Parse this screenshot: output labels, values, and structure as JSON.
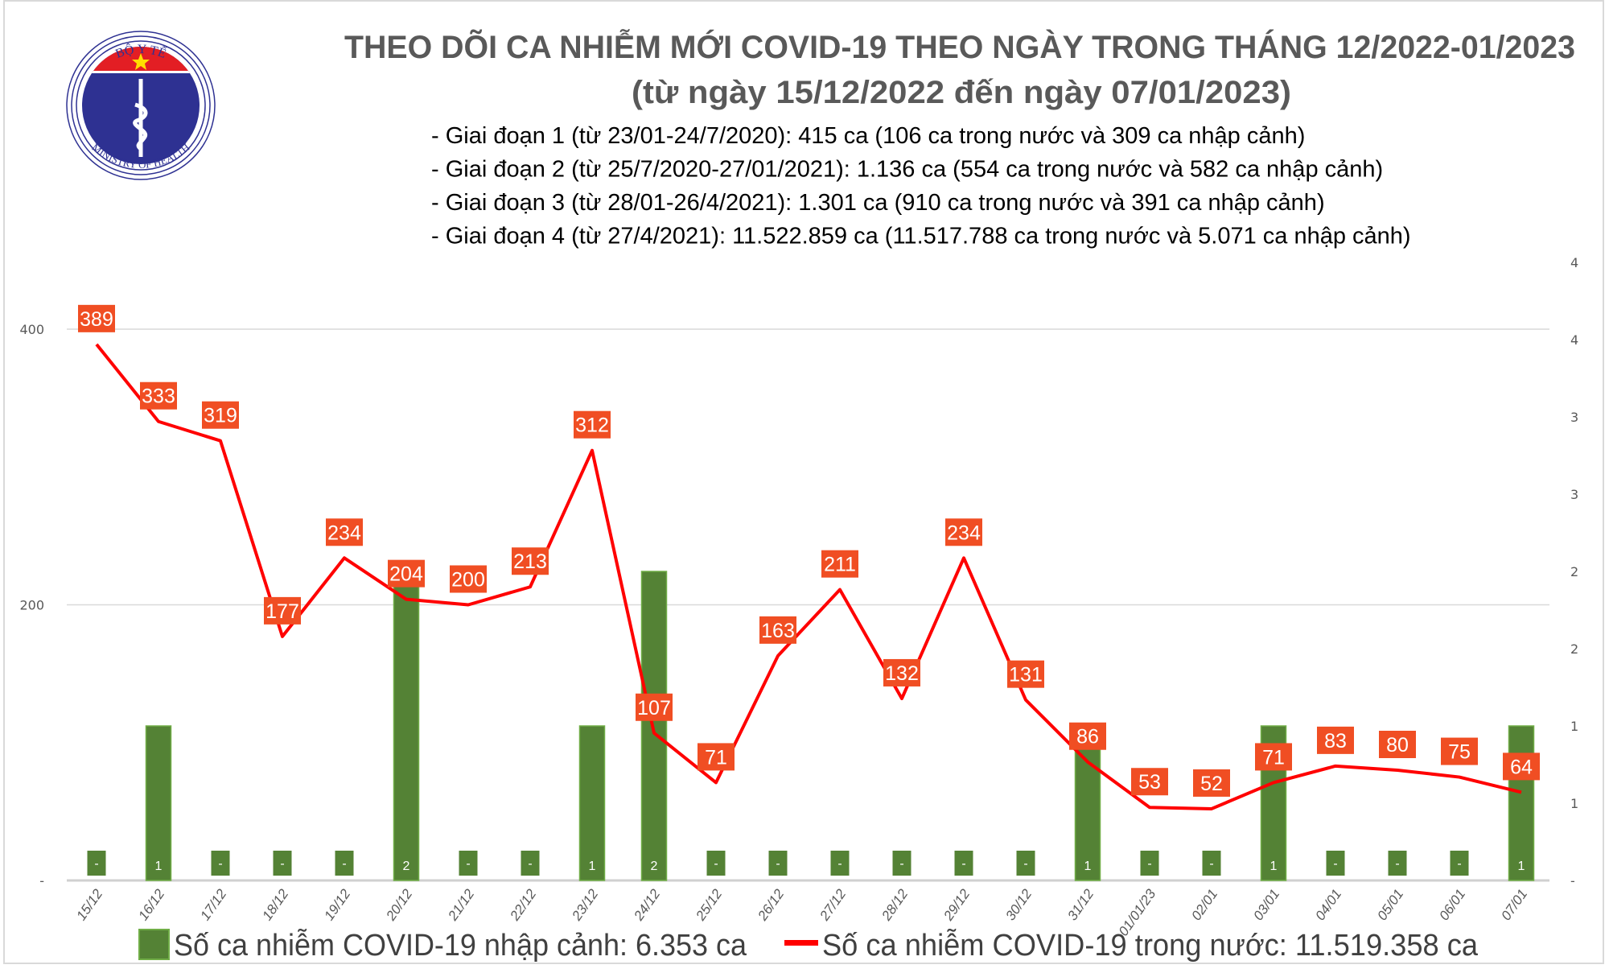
{
  "header": {
    "logo_text_top": "BỘ Y TẾ",
    "logo_text_bottom": "MINISTRY OF HEALTH",
    "title_line1": "THEO DÕI CA NHIỄM MỚI COVID-19 THEO NGÀY TRONG THÁNG 12/2022-01/2023",
    "title_line2": "(từ ngày 15/12/2022 đến ngày 07/01/2023)",
    "notes": [
      "- Giai đoạn 1 (từ 23/01-24/7/2020): 415 ca (106 ca trong nước và 309 ca nhập cảnh)",
      "- Giai đoạn 2 (từ 25/7/2020-27/01/2021): 1.136 ca (554 ca trong nước và 582 ca nhập cảnh)",
      "- Giai đoạn 3 (từ 28/01-26/4/2021): 1.301 ca (910 ca trong nước và 391 ca nhập cảnh)",
      "- Giai đoạn 4 (từ 27/4/2021): 11.522.859 ca (11.517.788 ca trong nước và 5.071 ca nhập cảnh)"
    ]
  },
  "chart_data": {
    "type": "bar+line",
    "categories": [
      "15/12",
      "16/12",
      "17/12",
      "18/12",
      "19/12",
      "20/12",
      "21/12",
      "22/12",
      "23/12",
      "24/12",
      "25/12",
      "26/12",
      "27/12",
      "28/12",
      "29/12",
      "30/12",
      "31/12",
      "01/01/23",
      "02/01",
      "03/01",
      "04/01",
      "05/01",
      "06/01",
      "07/01"
    ],
    "series": [
      {
        "name": "Số ca nhiễm COVID-19 nhập cảnh: 6.353 ca",
        "type": "bar",
        "axis": "right",
        "color": "#548235",
        "values": [
          0,
          1,
          0,
          0,
          0,
          2,
          0,
          0,
          1,
          2,
          0,
          0,
          0,
          0,
          0,
          0,
          1,
          0,
          0,
          1,
          0,
          0,
          0,
          1
        ]
      },
      {
        "name": "Số ca nhiễm COVID-19 trong nước: 11.519.358 ca",
        "type": "line",
        "axis": "left",
        "color": "#ff0000",
        "values": [
          389,
          333,
          319,
          177,
          234,
          204,
          200,
          213,
          312,
          107,
          71,
          163,
          211,
          132,
          234,
          131,
          86,
          53,
          52,
          71,
          83,
          80,
          75,
          64
        ]
      }
    ],
    "y_left": {
      "range": [
        0,
        400
      ],
      "ticks": [
        "-",
        "200",
        "400"
      ]
    },
    "y_right": {
      "range": [
        0,
        4
      ],
      "ticks": [
        "-",
        "1",
        "1",
        "2",
        "2",
        "3",
        "3",
        "4",
        "4"
      ]
    },
    "zero_label": "-",
    "grid": true,
    "legend": "bottom",
    "label_color": "#f04e23"
  }
}
